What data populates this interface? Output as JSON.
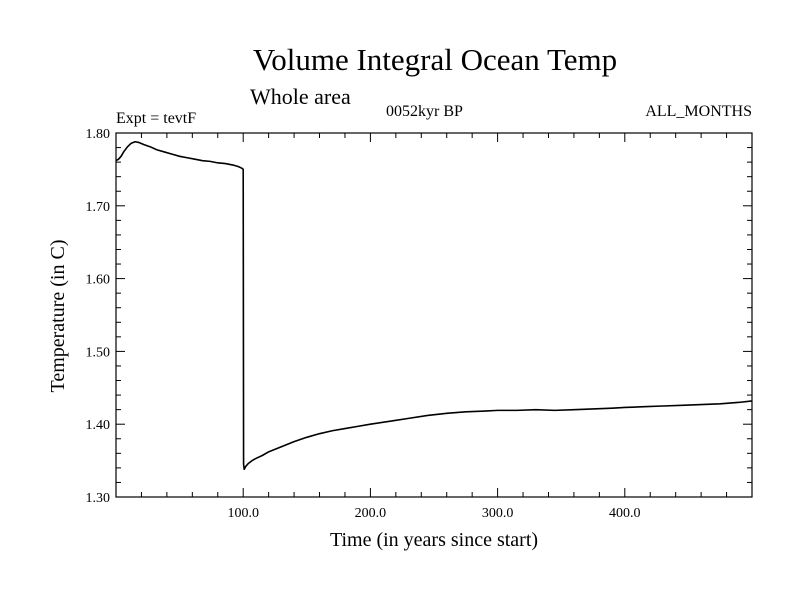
{
  "header": {
    "title": "Volume Integral Ocean Temp",
    "subtitle": "Whole area",
    "experiment": "Expt = tevtF",
    "period": "0052kyr BP",
    "months": "ALL_MONTHS"
  },
  "chart_data": {
    "type": "line",
    "title": "Volume Integral Ocean Temp",
    "xlabel": "Time (in years since start)",
    "ylabel": "Temperature (in C)",
    "xlim": [
      0,
      500
    ],
    "ylim": [
      1.3,
      1.8
    ],
    "xticks": [
      100,
      200,
      300,
      400
    ],
    "xtick_labels": [
      "100.0",
      "200.0",
      "300.0",
      "400.0"
    ],
    "yticks": [
      1.3,
      1.4,
      1.5,
      1.6,
      1.7,
      1.8
    ],
    "ytick_labels": [
      "1.30",
      "1.40",
      "1.50",
      "1.60",
      "1.70",
      "1.80"
    ],
    "grid": false,
    "line_color": "#000000",
    "series": [
      {
        "x": [
          0,
          2,
          4,
          6,
          9,
          12,
          15,
          18,
          22,
          27,
          32,
          38,
          44,
          50,
          56,
          62,
          68,
          74,
          80,
          86,
          92,
          96,
          98.5,
          99.5,
          100,
          100.3,
          100.8,
          102,
          104,
          107,
          110,
          115,
          120,
          130,
          140,
          150,
          160,
          170,
          180,
          190,
          200,
          215,
          230,
          245,
          260,
          275,
          290,
          300,
          315,
          330,
          345,
          360,
          375,
          390,
          400,
          415,
          430,
          445,
          460,
          475,
          490,
          500
        ],
        "y": [
          1.762,
          1.764,
          1.768,
          1.774,
          1.781,
          1.786,
          1.788,
          1.787,
          1.784,
          1.781,
          1.777,
          1.774,
          1.771,
          1.768,
          1.766,
          1.764,
          1.762,
          1.761,
          1.759,
          1.758,
          1.756,
          1.754,
          1.752,
          1.751,
          1.75,
          1.345,
          1.338,
          1.342,
          1.346,
          1.35,
          1.353,
          1.357,
          1.362,
          1.369,
          1.376,
          1.382,
          1.387,
          1.391,
          1.394,
          1.397,
          1.4,
          1.404,
          1.408,
          1.412,
          1.415,
          1.417,
          1.418,
          1.419,
          1.419,
          1.42,
          1.419,
          1.42,
          1.421,
          1.422,
          1.423,
          1.424,
          1.425,
          1.426,
          1.427,
          1.428,
          1.43,
          1.432
        ]
      }
    ]
  }
}
